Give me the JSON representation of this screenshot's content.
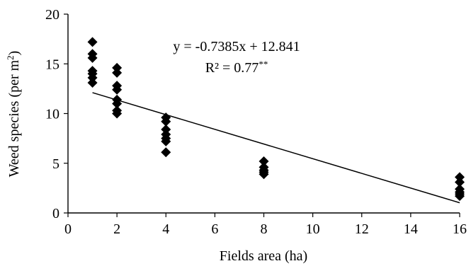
{
  "chart_data": {
    "type": "scatter",
    "xlabel": "Fields area (ha)",
    "ylabel": "Weed species (per m",
    "ylabel_sup": "2",
    "ylabel_suffix": ")",
    "xlim": [
      0,
      16
    ],
    "ylim": [
      0,
      20
    ],
    "x_ticks": [
      0,
      2,
      4,
      6,
      8,
      10,
      12,
      14,
      16
    ],
    "y_ticks": [
      0,
      5,
      10,
      15,
      20
    ],
    "grid": false,
    "legend": "none",
    "marker": "diamond",
    "marker_color": "#000000",
    "points": [
      {
        "x": 1,
        "y": 17.2
      },
      {
        "x": 1,
        "y": 16.0
      },
      {
        "x": 1,
        "y": 15.6
      },
      {
        "x": 1,
        "y": 14.3
      },
      {
        "x": 1,
        "y": 14.0
      },
      {
        "x": 1,
        "y": 13.6
      },
      {
        "x": 1,
        "y": 13.1
      },
      {
        "x": 2,
        "y": 14.6
      },
      {
        "x": 2,
        "y": 14.1
      },
      {
        "x": 2,
        "y": 12.8
      },
      {
        "x": 2,
        "y": 12.4
      },
      {
        "x": 2,
        "y": 11.4
      },
      {
        "x": 2,
        "y": 11.0
      },
      {
        "x": 2,
        "y": 10.3
      },
      {
        "x": 2,
        "y": 10.0
      },
      {
        "x": 4,
        "y": 9.6
      },
      {
        "x": 4,
        "y": 9.2
      },
      {
        "x": 4,
        "y": 8.4
      },
      {
        "x": 4,
        "y": 7.9
      },
      {
        "x": 4,
        "y": 7.5
      },
      {
        "x": 4,
        "y": 7.2
      },
      {
        "x": 4,
        "y": 6.1
      },
      {
        "x": 8,
        "y": 5.2
      },
      {
        "x": 8,
        "y": 4.6
      },
      {
        "x": 8,
        "y": 4.3
      },
      {
        "x": 8,
        "y": 4.1
      },
      {
        "x": 8,
        "y": 3.9
      },
      {
        "x": 16,
        "y": 3.6
      },
      {
        "x": 16,
        "y": 3.1
      },
      {
        "x": 16,
        "y": 2.4
      },
      {
        "x": 16,
        "y": 2.1
      },
      {
        "x": 16,
        "y": 1.9
      },
      {
        "x": 16,
        "y": 1.7
      }
    ],
    "trendline": {
      "type": "linear",
      "slope": -0.7385,
      "intercept": 12.841,
      "x_start": 1,
      "x_end": 16
    },
    "annotations": {
      "equation": "y = -0.7385x + 12.841",
      "r_squared_main": "R² = 0.77",
      "r_squared_sup": "**"
    }
  }
}
